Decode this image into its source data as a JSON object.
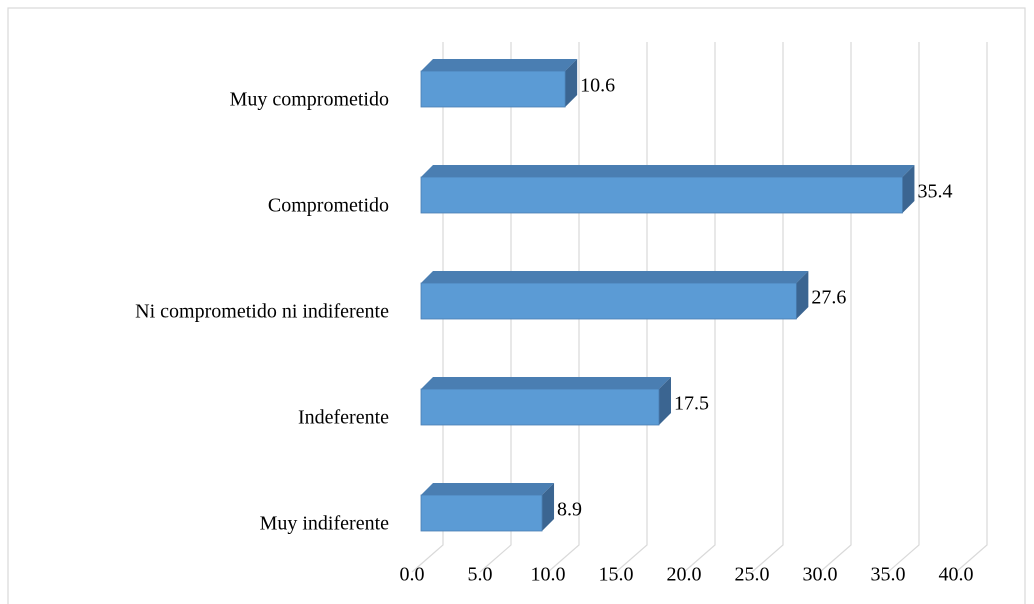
{
  "chart_data": {
    "type": "bar3d_horizontal",
    "categories": [
      "Muy comprometido",
      "Comprometido",
      "Ni comprometido ni indiferente",
      "Indeferente",
      "Muy indiferente"
    ],
    "values": [
      10.6,
      35.4,
      27.6,
      17.5,
      8.9
    ],
    "color": "#5b9bd5",
    "xlim": [
      0,
      40
    ],
    "xticks": [
      {
        "value": 0,
        "label": "0.0"
      },
      {
        "value": 5,
        "label": "5.0"
      },
      {
        "value": 10,
        "label": "10.0"
      },
      {
        "value": 15,
        "label": "15.0"
      },
      {
        "value": 20,
        "label": "20.0"
      },
      {
        "value": 25,
        "label": "25.0"
      },
      {
        "value": 30,
        "label": "30.0"
      },
      {
        "value": 35,
        "label": "35.0"
      },
      {
        "value": 40,
        "label": "40.0"
      }
    ],
    "grid": true
  }
}
